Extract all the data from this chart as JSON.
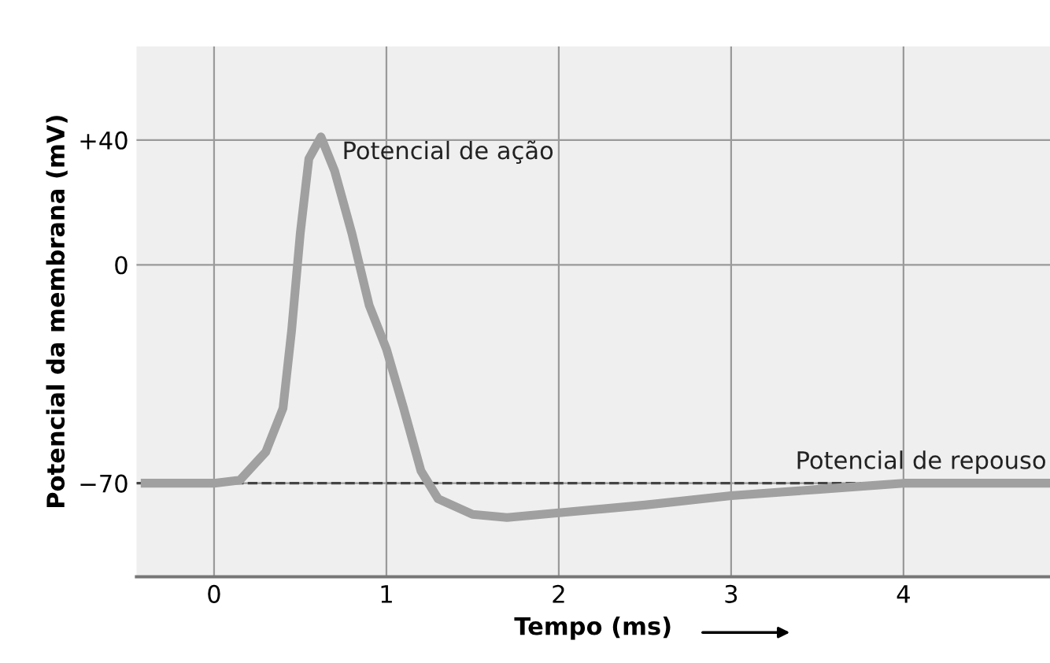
{
  "chart_data": {
    "type": "line",
    "xlabel": "Tempo (ms)",
    "ylabel": "Potencial da membrana (mV)",
    "x": [
      -0.4,
      0,
      0.15,
      0.3,
      0.4,
      0.45,
      0.5,
      0.55,
      0.62,
      0.7,
      0.8,
      0.9,
      1.0,
      1.1,
      1.2,
      1.3,
      1.5,
      1.7,
      2.0,
      2.5,
      3.0,
      3.5,
      4.0,
      4.5,
      4.85
    ],
    "series": [
      {
        "color": "#a0a0a0",
        "values": [
          -70,
          -70,
          -69,
          -60,
          -46,
          -21,
          10,
          34,
          41,
          30,
          10,
          -13,
          -27,
          -46,
          -66,
          -75,
          -80,
          -81,
          -79.5,
          -77,
          -74,
          -72,
          -70,
          -70,
          -70
        ]
      }
    ],
    "xlim": [
      -0.45,
      4.85
    ],
    "ylim": [
      -100,
      70
    ],
    "xticks": [
      0,
      1,
      2,
      3,
      4
    ],
    "yticks": [
      {
        "value": 40,
        "label": "+40"
      },
      0,
      {
        "value": -70,
        "label": "−70"
      }
    ],
    "grid": true,
    "line_style": "solid",
    "marker": "none",
    "ref_lines": [
      {
        "axis": "y",
        "value": -70,
        "label": "Potencial de repouso",
        "color": "#444444",
        "line_style": "dashed"
      }
    ],
    "annotations": [
      "Potencial de ação"
    ]
  }
}
